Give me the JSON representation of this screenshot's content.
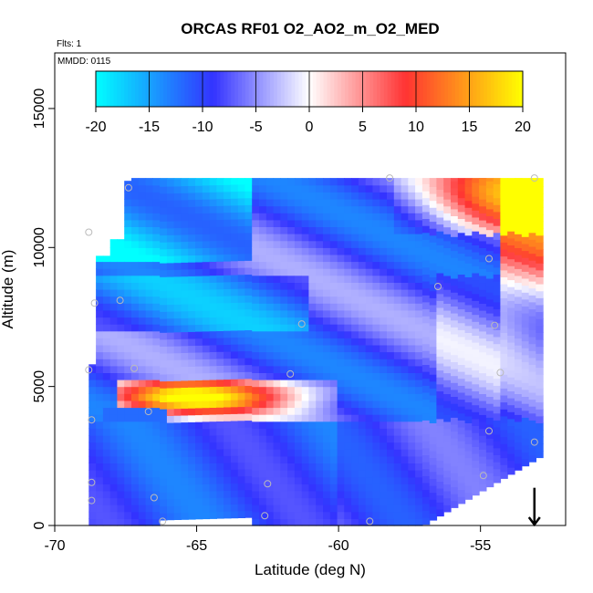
{
  "chart_data": {
    "type": "heatmap",
    "title": "ORCAS RF01 O2_AO2_m_O2_MED",
    "flights_label": "Flts: 1",
    "mmdd_label": "MMDD: 0115",
    "xlabel": "Latitude (deg N)",
    "ylabel": "Altitude (m)",
    "xlim": [
      -70,
      -52
    ],
    "ylim": [
      0,
      17000
    ],
    "xticks": [
      -70,
      -65,
      -60,
      -55
    ],
    "xtick_labels": [
      "-70",
      "-65",
      "-60",
      "-55"
    ],
    "yticks": [
      0,
      5000,
      10000,
      15000
    ],
    "ytick_labels": [
      "0",
      "5000",
      "10000",
      "15000"
    ],
    "colorbar": {
      "min": -20,
      "max": 20,
      "ticks": [
        -20,
        -15,
        -10,
        -5,
        0,
        5,
        10,
        15,
        20
      ],
      "tick_labels": [
        "-20",
        "-15",
        "-10",
        "-5",
        "0",
        "5",
        "10",
        "15",
        "20"
      ],
      "colors": [
        "#00ffff",
        "#3333ff",
        "#ffffff",
        "#ff3333",
        "#ffff00"
      ],
      "color_stops": [
        -20,
        -9,
        0,
        9,
        20
      ]
    },
    "sample_points": [
      [
        -67.4,
        12150
      ],
      [
        -68.8,
        10550
      ],
      [
        -68.6,
        8000
      ],
      [
        -67.7,
        8100
      ],
      [
        -61.3,
        7250
      ],
      [
        -68.8,
        5600
      ],
      [
        -67.2,
        5650
      ],
      [
        -61.7,
        5450
      ],
      [
        -66.7,
        4100
      ],
      [
        -68.7,
        3800
      ],
      [
        -68.7,
        1550
      ],
      [
        -68.7,
        900
      ],
      [
        -66.5,
        1000
      ],
      [
        -66.2,
        150
      ],
      [
        -62.5,
        1500
      ],
      [
        -62.6,
        350
      ],
      [
        -58.9,
        150
      ],
      [
        -54.9,
        1800
      ],
      [
        -54.7,
        3400
      ],
      [
        -53.1,
        3000
      ],
      [
        -54.3,
        5500
      ],
      [
        -54.5,
        7200
      ],
      [
        -56.5,
        8600
      ],
      [
        -54.7,
        9600
      ],
      [
        -53.1,
        12500
      ],
      [
        -58.2,
        12500
      ]
    ],
    "arrow": {
      "latitude": -53.1,
      "from_altitude": 700,
      "to_altitude": 0
    }
  }
}
